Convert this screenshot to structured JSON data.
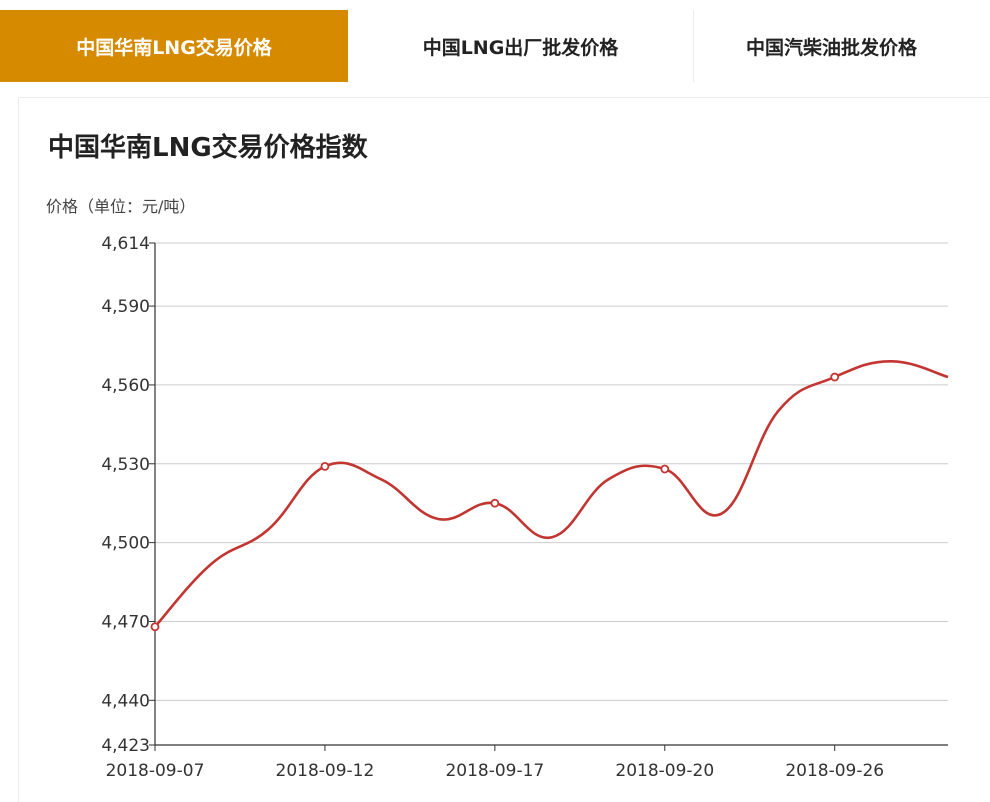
{
  "tabs": [
    {
      "label": "中国华南LNG交易价格",
      "active": true
    },
    {
      "label": "中国LNG出厂批发价格",
      "active": false
    },
    {
      "label": "中国汽柴油批发价格",
      "active": false
    }
  ],
  "colors": {
    "accent": "#d68a00",
    "line": "#c23531",
    "grid": "#cccccc",
    "axis": "#333333"
  },
  "chart_data": {
    "type": "line",
    "title": "中国华南LNG交易价格指数",
    "ylabel": "价格（单位：元/吨）",
    "xlabel": "",
    "ylim": [
      4423,
      4614
    ],
    "yticks": [
      4423,
      4440,
      4470,
      4500,
      4530,
      4560,
      4590,
      4614
    ],
    "ytick_labels": [
      "4,423",
      "4,440",
      "4,470",
      "4,500",
      "4,530",
      "4,560",
      "4,590",
      "4,614"
    ],
    "grid": true,
    "series": [
      {
        "x": [
          "2018-09-07",
          "2018-09-10",
          "2018-09-11",
          "2018-09-12",
          "2018-09-13",
          "2018-09-14",
          "2018-09-17",
          "2018-09-18",
          "2018-09-19",
          "2018-09-20",
          "2018-09-21",
          "2018-09-25",
          "2018-09-26",
          "2018-09-27",
          "2018-09-28"
        ],
        "values": [
          4468,
          4492,
          4505,
          4529,
          4524,
          4509,
          4515,
          4502,
          4524,
          4528,
          4511,
          4550,
          4563,
          4569,
          4563
        ]
      }
    ],
    "xtick_labels": [
      "2018-09-07",
      "2018-09-12",
      "2018-09-17",
      "2018-09-20",
      "2018-09-26"
    ],
    "marker_indices": [
      0,
      3,
      6,
      9,
      12
    ]
  }
}
